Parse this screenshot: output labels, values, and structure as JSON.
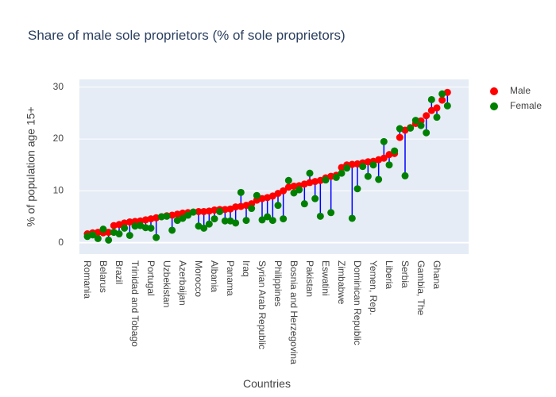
{
  "chart_data": {
    "type": "dumbbell",
    "title": "Share of male sole proprietors (% of sole proprietors)",
    "xlabel": "Countries",
    "ylabel": "% of population age 15+",
    "categories": [
      "Romania",
      null,
      null,
      "Belarus",
      null,
      null,
      "Brazil",
      null,
      null,
      "Trinidad and Tobago",
      null,
      null,
      "Portugal",
      null,
      null,
      "Uzbekistan",
      null,
      null,
      "Azerbaijan",
      null,
      null,
      "Morocco",
      null,
      null,
      "Albania",
      null,
      null,
      "Panama",
      null,
      null,
      "Iraq",
      null,
      null,
      "Syrian Arab Republic",
      null,
      null,
      "Philippines",
      null,
      null,
      "Bosnia and Herzegovina",
      null,
      null,
      "Pakistan",
      null,
      null,
      "Eswatini",
      null,
      null,
      "Zimbabwe",
      null,
      null,
      "Dominican Republic",
      null,
      null,
      "Yemen, Rep.",
      null,
      null,
      "Liberia",
      null,
      null,
      "Serbia",
      null,
      null,
      "Gambia, The",
      null,
      null,
      "Ghana",
      null,
      null
    ],
    "series": [
      {
        "name": "Male",
        "color": "#ff0000",
        "values": [
          1.7,
          1.9,
          2.0,
          1.9,
          2.0,
          3.3,
          3.5,
          3.8,
          4.0,
          4.1,
          4.2,
          4.4,
          4.6,
          4.8,
          5.0,
          5.2,
          5.3,
          5.5,
          5.7,
          5.8,
          5.9,
          6.0,
          6.0,
          6.1,
          6.3,
          6.4,
          6.4,
          6.5,
          6.9,
          7.0,
          7.2,
          7.5,
          8.2,
          8.5,
          8.7,
          9.0,
          9.5,
          10.0,
          10.7,
          10.9,
          11.0,
          11.3,
          11.6,
          11.8,
          12.0,
          12.5,
          12.8,
          13.0,
          14.5,
          15.0,
          15.1,
          15.2,
          15.4,
          15.6,
          15.7,
          16.0,
          16.3,
          17.0,
          17.2,
          20.3,
          21.7,
          22.2,
          23.0,
          23.5,
          24.5,
          25.5,
          26.0,
          27.5,
          29.0
        ]
      },
      {
        "name": "Female",
        "color": "#008000",
        "values": [
          1.2,
          1.5,
          0.8,
          2.6,
          0.5,
          2.0,
          1.7,
          2.8,
          1.4,
          3.2,
          3.3,
          2.9,
          2.8,
          1.0,
          5.0,
          5.1,
          2.4,
          4.3,
          4.7,
          5.3,
          5.9,
          3.2,
          2.8,
          3.6,
          4.6,
          6.0,
          4.2,
          4.2,
          3.8,
          9.7,
          4.3,
          6.6,
          9.1,
          4.4,
          5.0,
          4.3,
          7.2,
          4.6,
          12.0,
          9.6,
          10.2,
          7.5,
          13.4,
          8.5,
          5.1,
          12.1,
          5.8,
          12.6,
          13.4,
          14.4,
          4.7,
          10.4,
          14.7,
          12.8,
          15.0,
          12.2,
          19.5,
          15.0,
          17.7,
          22.0,
          12.9,
          22.1,
          23.6,
          22.6,
          21.2,
          27.6,
          24.2,
          28.7,
          26.4
        ]
      }
    ],
    "line_color": "#0000ff",
    "ylim": [
      -2.2,
      31.5
    ],
    "yticks": [
      0,
      10,
      20,
      30
    ],
    "grid": true,
    "legend": "top-right"
  }
}
